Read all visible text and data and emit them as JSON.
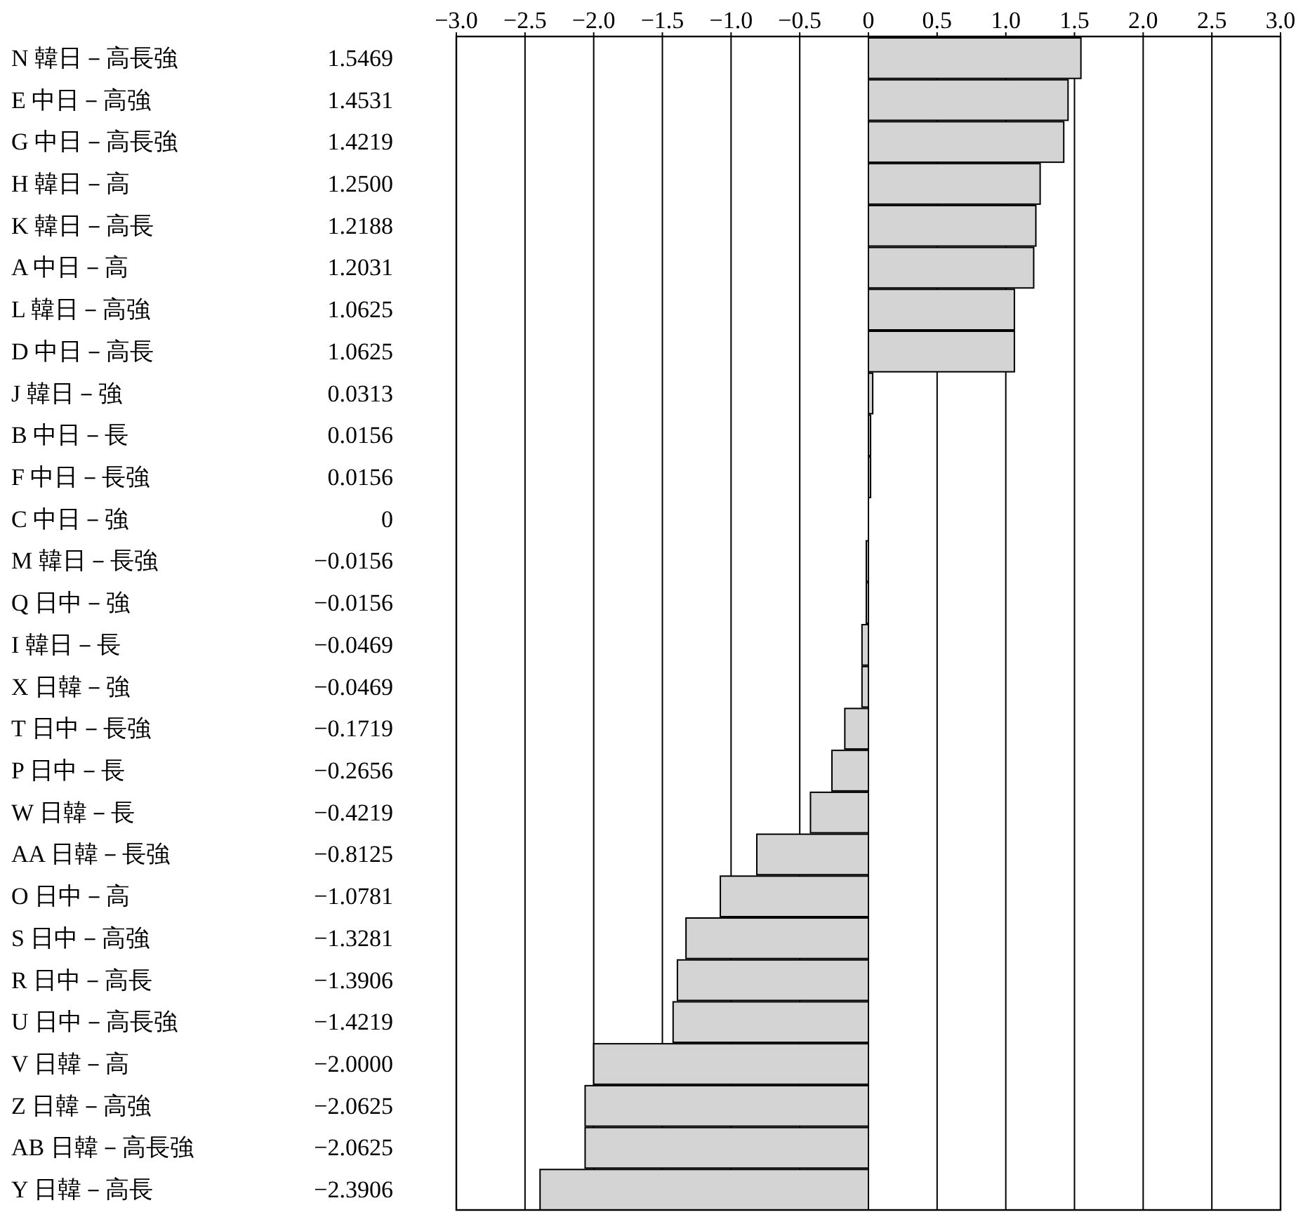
{
  "chart_data": {
    "type": "bar",
    "orientation": "horizontal",
    "color": "#d4d4d4",
    "grid": "x",
    "categories": [
      "N 韓日－高長強",
      "E 中日－高強",
      "G 中日－高長強",
      "H 韓日－高",
      "K 韓日－高長",
      "A 中日－高",
      "L 韓日－高強",
      "D 中日－高長",
      "J 韓日－強",
      "B 中日－長",
      "F 中日－長強",
      "C 中日－強",
      "M 韓日－長強",
      "Q 日中－強",
      "I 韓日－長",
      "X 日韓－強",
      "T 日中－長強",
      "P 日中－長",
      "W 日韓－長",
      "AA 日韓－長強",
      "O 日中－高",
      "S 日中－高強",
      "R 日中－高長",
      "U 日中－高長強",
      "V 日韓－高",
      "Z 日韓－高強",
      "AB 日韓－高長強",
      "Y 日韓－高長"
    ],
    "values": [
      1.5469,
      1.4531,
      1.4219,
      1.25,
      1.2188,
      1.2031,
      1.0625,
      1.0625,
      0.0313,
      0.0156,
      0.0156,
      0,
      -0.0156,
      -0.0156,
      -0.0469,
      -0.0469,
      -0.1719,
      -0.2656,
      -0.4219,
      -0.8125,
      -1.0781,
      -1.3281,
      -1.3906,
      -1.4219,
      -2.0,
      -2.0625,
      -2.0625,
      -2.3906
    ],
    "value_labels": [
      "1.5469",
      "1.4531",
      "1.4219",
      "1.2500",
      "1.2188",
      "1.2031",
      "1.0625",
      "1.0625",
      "0.0313",
      "0.0156",
      "0.0156",
      "0",
      "−0.0156",
      "−0.0156",
      "−0.0469",
      "−0.0469",
      "−0.1719",
      "−0.2656",
      "−0.4219",
      "−0.8125",
      "−1.0781",
      "−1.3281",
      "−1.3906",
      "−1.4219",
      "−2.0000",
      "−2.0625",
      "−2.0625",
      "−2.3906"
    ],
    "xlim": [
      -3,
      3
    ],
    "x2lim": [
      -3,
      3
    ],
    "x2ticks": [
      {
        "value": -3,
        "label": "−3.0"
      },
      {
        "value": -2.5,
        "label": "−2.5"
      },
      {
        "value": -2,
        "label": "−2.0"
      },
      {
        "value": -1.5,
        "label": "−1.5"
      },
      {
        "value": -1,
        "label": "−1.0"
      },
      {
        "value": -0.5,
        "label": "−0.5"
      },
      {
        "value": 0,
        "label": "0"
      },
      {
        "value": 0.5,
        "label": "0.5"
      },
      {
        "value": 1,
        "label": "1.0"
      },
      {
        "value": 1.5,
        "label": "1.5"
      },
      {
        "value": 2,
        "label": "2.0"
      },
      {
        "value": 2.5,
        "label": "2.5"
      },
      {
        "value": 3,
        "label": "3.0"
      }
    ]
  }
}
